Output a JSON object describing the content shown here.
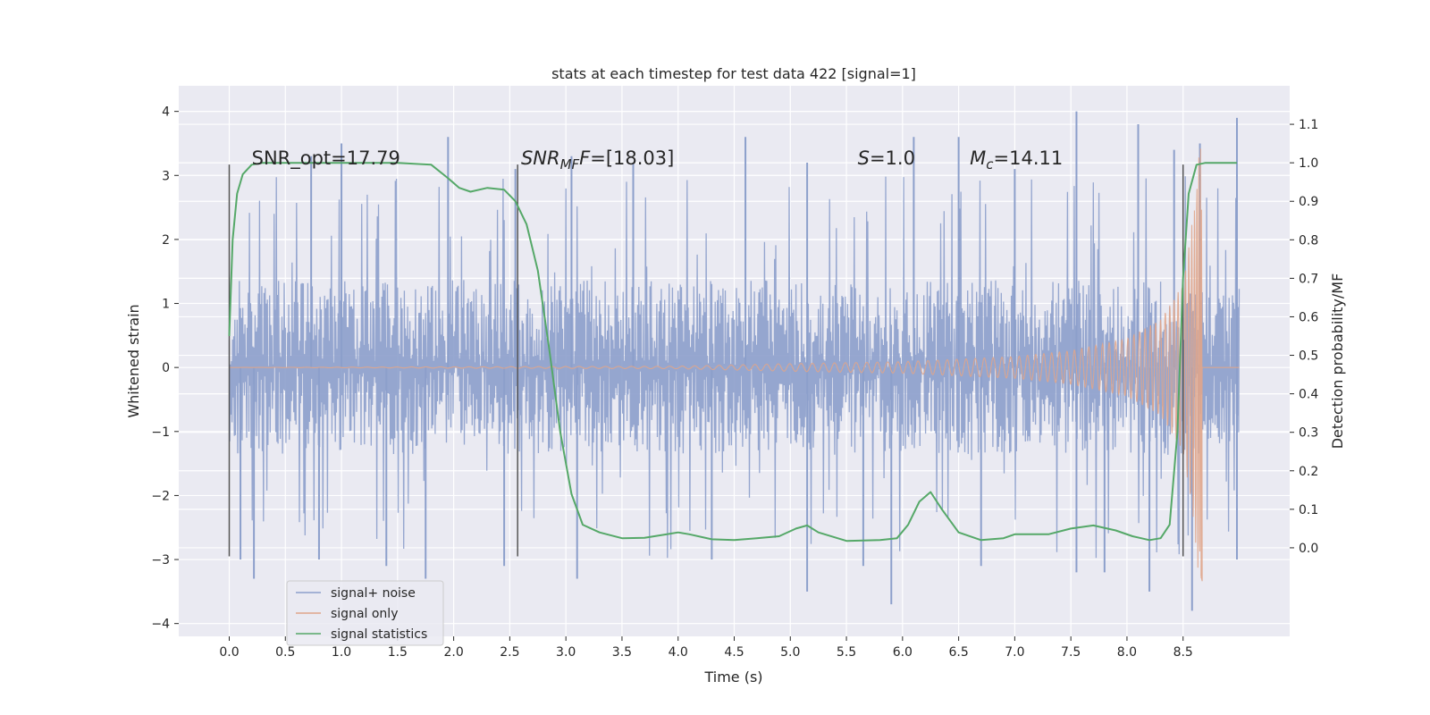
{
  "chart_data": {
    "type": "line",
    "title": "stats at each timestep for test data 422 [signal=1]",
    "xlabel": "Time (s)",
    "ylabel": "Whitened strain",
    "ylabel_right": "Detection probability/MF",
    "xlim": [
      -0.45,
      9.45
    ],
    "ylim": [
      -4.2,
      4.4
    ],
    "ylim_right": [
      -0.23,
      1.2
    ],
    "x_ticks": [
      0.0,
      0.5,
      1.0,
      1.5,
      2.0,
      2.5,
      3.0,
      3.5,
      4.0,
      4.5,
      5.0,
      5.5,
      6.0,
      6.5,
      7.0,
      7.5,
      8.0,
      8.5
    ],
    "x_tick_labels": [
      "0.0",
      "0.5",
      "1.0",
      "1.5",
      "2.0",
      "2.5",
      "3.0",
      "3.5",
      "4.0",
      "4.5",
      "5.0",
      "5.5",
      "6.0",
      "6.5",
      "7.0",
      "7.5",
      "8.0",
      "8.5"
    ],
    "y_ticks": [
      4,
      3,
      2,
      1,
      0,
      -1,
      -2,
      -3,
      -4
    ],
    "y_tick_labels": [
      "4",
      "3",
      "2",
      "1",
      "0",
      "−1",
      "−2",
      "−3",
      "−4"
    ],
    "y_right_ticks": [
      1.1,
      1.0,
      0.9,
      0.8,
      0.7,
      0.6,
      0.5,
      0.4,
      0.3,
      0.2,
      0.1,
      0.0
    ],
    "y_right_tick_labels": [
      "1.1",
      "1.0",
      "0.9",
      "0.8",
      "0.7",
      "0.6",
      "0.5",
      "0.4",
      "0.3",
      "0.2",
      "0.1",
      "0.0"
    ],
    "series": [
      {
        "name": "signal+ noise",
        "color": "#8c9fcb",
        "x_range": [
          0.0,
          9.0
        ],
        "typical_amplitude": 1.3,
        "peak_values": [
          [
            0.73,
            3.3
          ],
          [
            1.0,
            3.5
          ],
          [
            1.95,
            3.6
          ],
          [
            2.55,
            3.1
          ],
          [
            3.05,
            3.3
          ],
          [
            3.6,
            3.2
          ],
          [
            4.6,
            3.6
          ],
          [
            5.15,
            3.2
          ],
          [
            6.1,
            3.6
          ],
          [
            6.5,
            3.6
          ],
          [
            7.0,
            3.1
          ],
          [
            7.55,
            4.0
          ],
          [
            8.1,
            3.8
          ],
          [
            8.42,
            3.4
          ],
          [
            8.65,
            3.5
          ],
          [
            8.98,
            3.9
          ],
          [
            0.1,
            -3.0
          ],
          [
            0.22,
            -3.3
          ],
          [
            0.8,
            -3.0
          ],
          [
            1.4,
            -3.1
          ],
          [
            1.75,
            -3.3
          ],
          [
            2.45,
            -3.1
          ],
          [
            3.1,
            -3.3
          ],
          [
            4.3,
            -3.0
          ],
          [
            5.15,
            -3.5
          ],
          [
            5.65,
            -3.1
          ],
          [
            5.9,
            -3.7
          ],
          [
            6.7,
            -3.1
          ],
          [
            7.55,
            -3.2
          ],
          [
            7.8,
            -3.2
          ],
          [
            8.2,
            -3.5
          ],
          [
            8.58,
            -3.8
          ],
          [
            8.98,
            -3.0
          ]
        ]
      },
      {
        "name": "signal only",
        "color": "#e0a589",
        "x_range": [
          0.0,
          8.67
        ],
        "amplitude_points": [
          [
            0.0,
            0.0
          ],
          [
            4.0,
            0.02
          ],
          [
            5.0,
            0.06
          ],
          [
            6.0,
            0.09
          ],
          [
            7.0,
            0.17
          ],
          [
            7.5,
            0.26
          ],
          [
            8.0,
            0.45
          ],
          [
            8.3,
            0.75
          ],
          [
            8.5,
            1.3
          ],
          [
            8.6,
            2.5
          ],
          [
            8.65,
            3.5
          ]
        ],
        "min_value": -3.25
      },
      {
        "name": "signal statistics",
        "color": "#55a868",
        "x": [
          0.0,
          0.03,
          0.07,
          0.12,
          0.2,
          0.3,
          0.5,
          1.0,
          1.5,
          1.8,
          1.95,
          2.05,
          2.15,
          2.3,
          2.45,
          2.55,
          2.65,
          2.75,
          2.85,
          2.95,
          3.05,
          3.15,
          3.3,
          3.5,
          3.7,
          3.9,
          4.0,
          4.1,
          4.3,
          4.5,
          4.7,
          4.9,
          5.05,
          5.15,
          5.25,
          5.5,
          5.8,
          5.95,
          6.05,
          6.15,
          6.25,
          6.35,
          6.5,
          6.7,
          6.9,
          7.0,
          7.15,
          7.3,
          7.5,
          7.7,
          7.9,
          8.05,
          8.2,
          8.3,
          8.38,
          8.45,
          8.5,
          8.55,
          8.62,
          8.7,
          8.85,
          8.98
        ],
        "values": [
          0.55,
          0.8,
          0.92,
          0.97,
          0.995,
          1.0,
          1.0,
          1.0,
          1.0,
          0.995,
          0.96,
          0.935,
          0.925,
          0.935,
          0.93,
          0.9,
          0.84,
          0.72,
          0.52,
          0.3,
          0.14,
          0.06,
          0.04,
          0.025,
          0.026,
          0.035,
          0.04,
          0.035,
          0.022,
          0.02,
          0.025,
          0.03,
          0.05,
          0.058,
          0.04,
          0.018,
          0.02,
          0.025,
          0.06,
          0.12,
          0.145,
          0.1,
          0.04,
          0.02,
          0.025,
          0.035,
          0.035,
          0.035,
          0.05,
          0.058,
          0.045,
          0.03,
          0.02,
          0.025,
          0.06,
          0.3,
          0.7,
          0.92,
          0.995,
          1.0,
          1.0,
          1.0
        ]
      }
    ],
    "vertical_lines": [
      {
        "x": 0.0,
        "y_range": [
          -2.95,
          3.17
        ]
      },
      {
        "x": 2.57,
        "y_range": [
          -2.95,
          3.17
        ]
      },
      {
        "x": 8.5,
        "y_range": [
          -2.95,
          3.17
        ]
      }
    ],
    "annotations": {
      "snr_opt": {
        "x": 0.2,
        "y": 3.17,
        "text": "SNR_opt=17.79"
      },
      "snr_mf": {
        "x": 2.6,
        "y": 3.17,
        "prefix": "SNR",
        "subscript": "MF",
        "text": "=[18.03]"
      },
      "stat": {
        "x": 5.6,
        "y": 3.17,
        "prefix": "S",
        "text": "=1.0"
      },
      "chirp_mass": {
        "x": 6.6,
        "y": 3.17,
        "prefix": "M",
        "subscript": "c",
        "text": "=14.11"
      }
    },
    "legend": {
      "position": "lower-left",
      "entries": [
        {
          "label": "signal+ noise",
          "color": "#8c9fcb"
        },
        {
          "label": "signal only",
          "color": "#e0a589"
        },
        {
          "label": "signal statistics",
          "color": "#55a868"
        }
      ]
    },
    "grid": true
  }
}
